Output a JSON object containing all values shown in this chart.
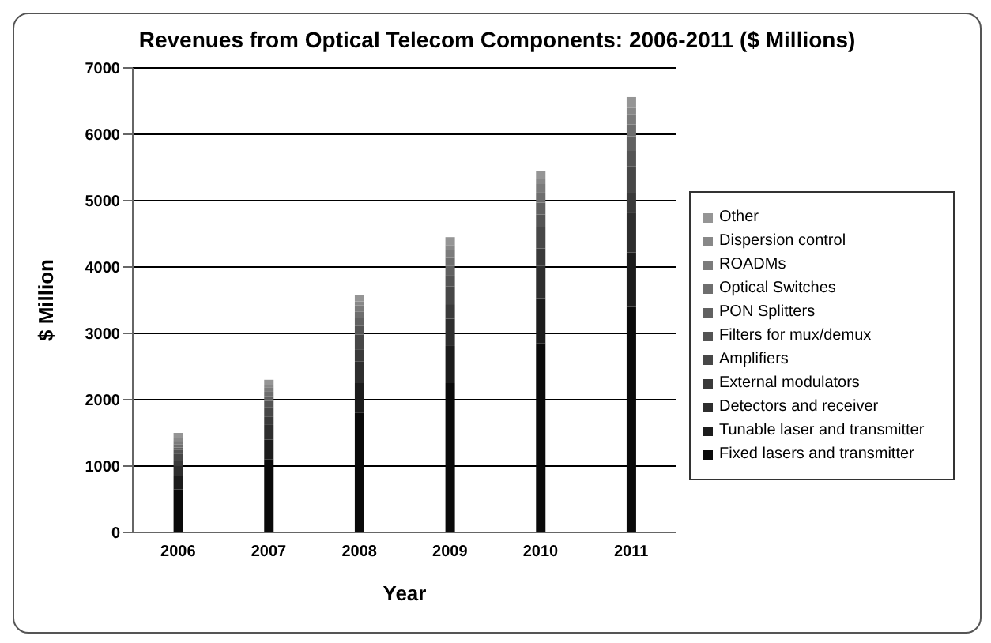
{
  "chart_data": {
    "type": "bar",
    "title": "Revenues from Optical Telecom Components: 2006-2011 ($ Millions)",
    "xlabel": "Year",
    "ylabel": "$ Million",
    "categories": [
      "2006",
      "2007",
      "2008",
      "2009",
      "2010",
      "2011"
    ],
    "stacked": true,
    "ylim": [
      0,
      7000
    ],
    "yticks": [
      0,
      1000,
      2000,
      3000,
      4000,
      5000,
      6000,
      7000
    ],
    "grid": "y",
    "legend": "right",
    "series": [
      {
        "name": "Fixed lasers and transmitter",
        "color": "#0a0a0a",
        "values": [
          650,
          1100,
          1800,
          2250,
          2850,
          3400
        ]
      },
      {
        "name": "Tunable laser and transmitter",
        "color": "#1c1c1c",
        "values": [
          200,
          300,
          450,
          560,
          680,
          820
        ]
      },
      {
        "name": "Detectors and receiver",
        "color": "#2e2e2e",
        "values": [
          150,
          220,
          330,
          410,
          490,
          600
        ]
      },
      {
        "name": "External modulators",
        "color": "#3a3a3a",
        "values": [
          80,
          120,
          180,
          220,
          260,
          310
        ]
      },
      {
        "name": "Amplifiers",
        "color": "#474747",
        "values": [
          100,
          150,
          220,
          270,
          320,
          390
        ]
      },
      {
        "name": "Filters for mux/demux",
        "color": "#545454",
        "values": [
          60,
          90,
          130,
          160,
          190,
          230
        ]
      },
      {
        "name": "PON Splitters",
        "color": "#616161",
        "values": [
          40,
          70,
          120,
          150,
          180,
          220
        ]
      },
      {
        "name": "Optical Switches",
        "color": "#6e6e6e",
        "values": [
          50,
          70,
          100,
          130,
          150,
          180
        ]
      },
      {
        "name": "ROADMs",
        "color": "#7b7b7b",
        "values": [
          50,
          60,
          90,
          110,
          130,
          150
        ]
      },
      {
        "name": "Dispersion control",
        "color": "#888888",
        "values": [
          40,
          40,
          60,
          70,
          80,
          100
        ]
      },
      {
        "name": "Other",
        "color": "#959595",
        "values": [
          80,
          80,
          100,
          120,
          120,
          160
        ]
      }
    ]
  }
}
